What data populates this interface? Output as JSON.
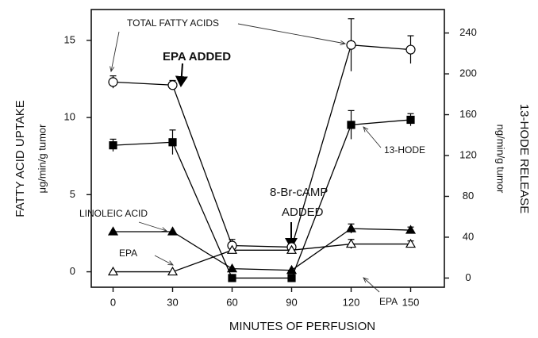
{
  "chart_data": {
    "type": "line",
    "x_label": "MINUTES OF PERFUSION",
    "y_label": "FATTY ACID UPTAKE",
    "y_unit": "μg/min/g tumor",
    "y2_label": "13-HODE RELEASE",
    "y2_unit": "ng/min/g tumor",
    "x": [
      0,
      30,
      60,
      90,
      120,
      150
    ],
    "xlim": [
      -11,
      167
    ],
    "xticks": [
      0,
      30,
      60,
      90,
      120,
      150
    ],
    "ylim": [
      -1,
      17
    ],
    "yticks": [
      0,
      5,
      10,
      15
    ],
    "y2lim": [
      -9,
      263
    ],
    "y2ticks": [
      0,
      40,
      80,
      120,
      160,
      200,
      240
    ],
    "series": [
      {
        "name": "TOTAL FATTY ACIDS",
        "marker": "circle-open",
        "color": "#000",
        "values": [
          12.3,
          12.1,
          1.7,
          1.6,
          14.7,
          14.4
        ],
        "errors": [
          0.4,
          0.3,
          0.4,
          0.3,
          1.7,
          0.9
        ]
      },
      {
        "name": "13-HODE",
        "marker": "square",
        "color": "#000",
        "axis": "y2",
        "values": [
          130,
          133,
          0,
          0,
          150,
          155
        ],
        "errors": [
          6,
          12,
          0,
          0,
          14,
          6
        ]
      },
      {
        "name": "LINOLEIC ACID",
        "marker": "triangle",
        "color": "#000",
        "values": [
          2.6,
          2.6,
          0.2,
          0.1,
          2.8,
          2.7
        ],
        "errors": [
          0,
          0,
          0,
          0,
          0.3,
          0.2
        ]
      },
      {
        "name": "EPA",
        "marker": "triangle-open",
        "color": "#000",
        "values": [
          0,
          0,
          1.4,
          1.4,
          1.8,
          1.8
        ],
        "errors": [
          0,
          0,
          0,
          0,
          0.3,
          0.2
        ]
      }
    ],
    "annotations": [
      "TOTAL FATTY ACIDS",
      "EPA ADDED",
      "8-Br-cAMP",
      "ADDED",
      "13-HODE",
      "LINOLEIC ACID",
      "EPA",
      "EPA"
    ]
  }
}
